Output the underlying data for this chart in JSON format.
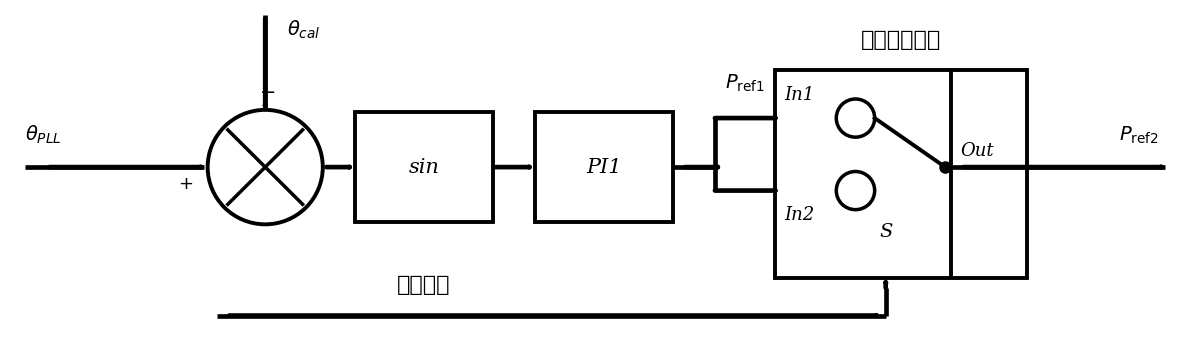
{
  "bg_color": "#ffffff",
  "line_color": "#000000",
  "fig_width": 12.02,
  "fig_height": 3.48,
  "dpi": 100,
  "theta_pll_label": "$\\theta_{PLL}$",
  "theta_cal_label": "$\\theta_{cal}$",
  "sin_label": "sin",
  "pi1_label": "PI1",
  "p_ref1_label": "$P_{\\mathrm{ref1}}$",
  "p_ref2_label": "$P_{\\mathrm{ref2}}$",
  "in1_label": "In1",
  "in2_label": "In2",
  "out_label": "Out",
  "s_label": "S",
  "mode_switch_label": "模式选择开关",
  "control_mode_label": "控制模式",
  "lw": 2.8,
  "fontsize_main": 15,
  "fontsize_label": 14,
  "fontsize_chinese": 16
}
